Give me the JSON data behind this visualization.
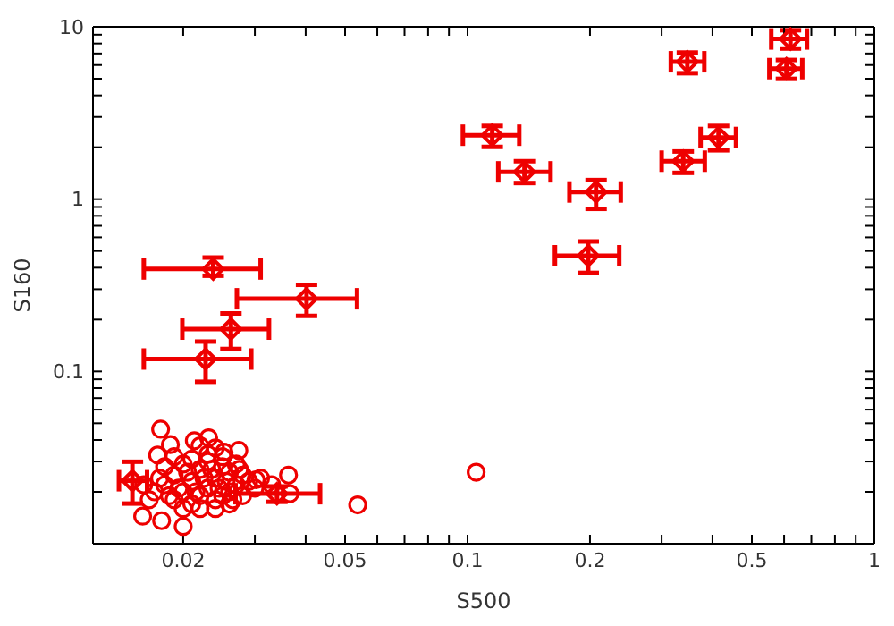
{
  "chart_data": {
    "type": "scatter",
    "xlabel": "S500",
    "ylabel": "S160",
    "log": "xy",
    "xlim": [
      0.012,
      1
    ],
    "ylim": [
      0.01,
      10
    ],
    "xticks": [
      0.02,
      {
        "value": 0.03,
        "label": null
      },
      {
        "value": 0.04,
        "label": null
      },
      0.05,
      {
        "value": 0.06,
        "label": null
      },
      {
        "value": 0.07,
        "label": null
      },
      {
        "value": 0.08,
        "label": null
      },
      {
        "value": 0.09,
        "label": null
      },
      0.1,
      0.2,
      {
        "value": 0.3,
        "label": null
      },
      {
        "value": 0.4,
        "label": null
      },
      0.5,
      {
        "value": 0.6,
        "label": null
      },
      {
        "value": 0.7,
        "label": null
      },
      {
        "value": 0.8,
        "label": null
      },
      {
        "value": 0.9,
        "label": null
      },
      1
    ],
    "yticks": [
      {
        "value": 0.02,
        "label": null
      },
      {
        "value": 0.03,
        "label": null
      },
      {
        "value": 0.04,
        "label": null
      },
      {
        "value": 0.05,
        "label": null
      },
      {
        "value": 0.06,
        "label": null
      },
      {
        "value": 0.07,
        "label": null
      },
      {
        "value": 0.08,
        "label": null
      },
      {
        "value": 0.09,
        "label": null
      },
      0.1,
      {
        "value": 0.2,
        "label": null
      },
      {
        "value": 0.3,
        "label": null
      },
      {
        "value": 0.4,
        "label": null
      },
      {
        "value": 0.5,
        "label": null
      },
      {
        "value": 0.6,
        "label": null
      },
      {
        "value": 0.7,
        "label": null
      },
      {
        "value": 0.8,
        "label": null
      },
      {
        "value": 0.9,
        "label": null
      },
      1,
      {
        "value": 2,
        "label": null
      },
      {
        "value": 3,
        "label": null
      },
      {
        "value": 4,
        "label": null
      },
      {
        "value": 5,
        "label": null
      },
      {
        "value": 6,
        "label": null
      },
      {
        "value": 7,
        "label": null
      },
      {
        "value": 8,
        "label": null
      },
      {
        "value": 9,
        "label": null
      },
      10
    ],
    "series": [
      {
        "marker": "circle",
        "color": "#ee0000",
        "x": [
          0.105,
          0.0537,
          0.0176,
          0.0159,
          0.0177,
          0.02,
          0.0363,
          0.0366,
          0.0302,
          0.0231,
          0.0274,
          0.0186,
          0.0173,
          0.0213,
          0.0252,
          0.018,
          0.019,
          0.02,
          0.021,
          0.022,
          0.023,
          0.024,
          0.025,
          0.026,
          0.027,
          0.028,
          0.019,
          0.02,
          0.021,
          0.022,
          0.023,
          0.024,
          0.025,
          0.026,
          0.027,
          0.018,
          0.017,
          0.0175,
          0.0185,
          0.0195,
          0.0205,
          0.0215,
          0.0225,
          0.0235,
          0.0245,
          0.0255,
          0.0265,
          0.0275,
          0.029,
          0.03,
          0.021,
          0.023,
          0.025,
          0.02,
          0.022,
          0.024,
          0.026,
          0.019,
          0.0165,
          0.016,
          0.028,
          0.031,
          0.033,
          0.024,
          0.022
        ],
        "values": [
          0.026,
          0.0168,
          0.0462,
          0.01445,
          0.0136,
          0.0126,
          0.025,
          0.0195,
          0.0235,
          0.0412,
          0.0348,
          0.0376,
          0.0327,
          0.0396,
          0.034,
          0.022,
          0.025,
          0.02,
          0.023,
          0.027,
          0.021,
          0.024,
          0.019,
          0.026,
          0.022,
          0.025,
          0.018,
          0.029,
          0.017,
          0.019,
          0.03,
          0.018,
          0.028,
          0.02,
          0.029,
          0.028,
          0.02,
          0.024,
          0.019,
          0.021,
          0.026,
          0.02,
          0.024,
          0.027,
          0.021,
          0.023,
          0.018,
          0.027,
          0.023,
          0.021,
          0.031,
          0.033,
          0.032,
          0.016,
          0.016,
          0.016,
          0.017,
          0.032,
          0.018,
          0.022,
          0.019,
          0.024,
          0.022,
          0.036,
          0.037
        ]
      },
      {
        "marker": "diamond",
        "color": "#ee0000",
        "x": [
          0.622,
          0.608,
          0.347,
          0.414,
          0.339,
          0.115,
          0.138,
          0.207,
          0.198,
          0.0237,
          0.0402,
          0.0262,
          0.0227,
          0.015,
          0.034
        ],
        "values": [
          8.5,
          5.72,
          6.27,
          2.28,
          1.66,
          2.35,
          1.44,
          1.1,
          0.469,
          0.393,
          0.264,
          0.176,
          0.118,
          0.0232,
          0.0195
        ],
        "xerrors": [
          [
            0.558,
            0.683
          ],
          [
            0.552,
            0.665
          ],
          [
            0.316,
            0.382
          ],
          [
            0.374,
            0.457
          ],
          [
            0.3,
            0.383
          ],
          [
            0.0974,
            0.134
          ],
          [
            0.119,
            0.16
          ],
          [
            0.178,
            0.238
          ],
          [
            0.164,
            0.236
          ],
          [
            0.016,
            0.031
          ],
          [
            0.0271,
            0.0535
          ],
          [
            0.0199,
            0.0325
          ],
          [
            0.016,
            0.0294
          ],
          [
            0.0139,
            0.0163
          ],
          [
            0.0269,
            0.0434
          ]
        ],
        "errors": [
          [
            7.48,
            9.55
          ],
          [
            4.99,
            6.42
          ],
          [
            5.38,
            7.09
          ],
          [
            1.92,
            2.66
          ],
          [
            1.42,
            1.89
          ],
          [
            2.01,
            2.66
          ],
          [
            1.24,
            1.66
          ],
          [
            0.878,
            1.29
          ],
          [
            0.373,
            0.568
          ],
          [
            0.359,
            0.458
          ],
          [
            0.21,
            0.318
          ],
          [
            0.135,
            0.217
          ],
          [
            0.0871,
            0.149
          ],
          [
            0.0171,
            0.0299
          ],
          [
            0.0175,
            0.0215
          ]
        ]
      }
    ]
  }
}
